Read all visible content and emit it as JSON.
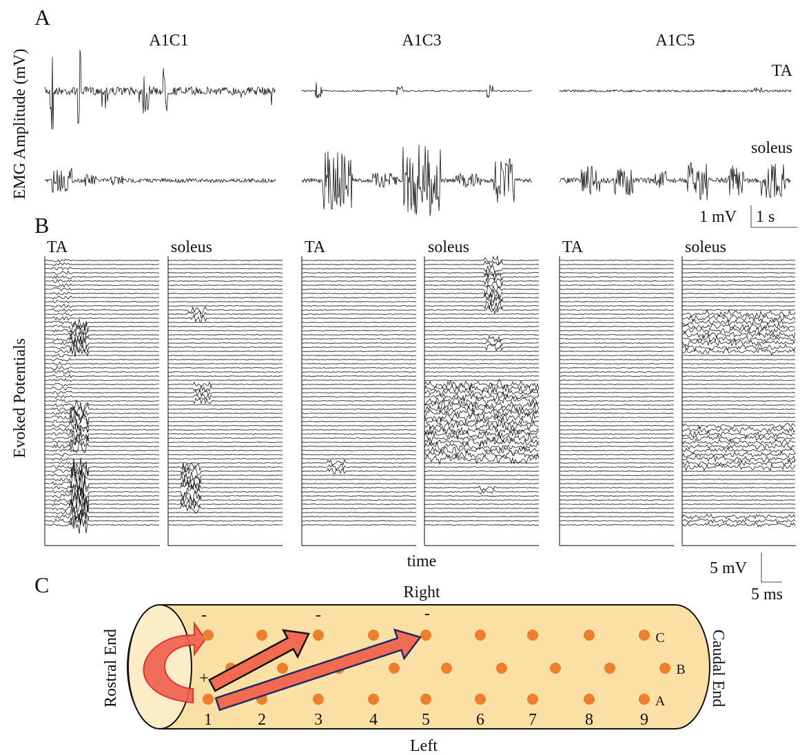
{
  "panel_a": {
    "letter": "A",
    "y_label": "EMG Amplitude (mV)",
    "columns": [
      "A1C1",
      "A1C3",
      "A1C5"
    ],
    "rows": [
      "TA",
      "soleus"
    ],
    "scale_bar": {
      "amplitude": "1 mV",
      "time": "1 s"
    }
  },
  "panel_b": {
    "letter": "B",
    "y_label": "Evoked Potentials",
    "x_label": "time",
    "columns": [
      {
        "left": "TA",
        "right": "soleus"
      },
      {
        "left": "TA",
        "right": "soleus"
      },
      {
        "left": "TA",
        "right": "soleus"
      }
    ],
    "scale_bar": {
      "amplitude": "5 mV",
      "time": "5 ms"
    }
  },
  "panel_c": {
    "letter": "C",
    "top": "Right",
    "bottom": "Left",
    "left_end": "Rostral End",
    "right_end": "Caudal End",
    "cathodes": [
      "-",
      "-",
      "-"
    ],
    "anode": "+",
    "columns": [
      "1",
      "2",
      "3",
      "4",
      "5",
      "6",
      "7",
      "8",
      "9"
    ],
    "rows": [
      "C",
      "B",
      "A"
    ]
  }
}
